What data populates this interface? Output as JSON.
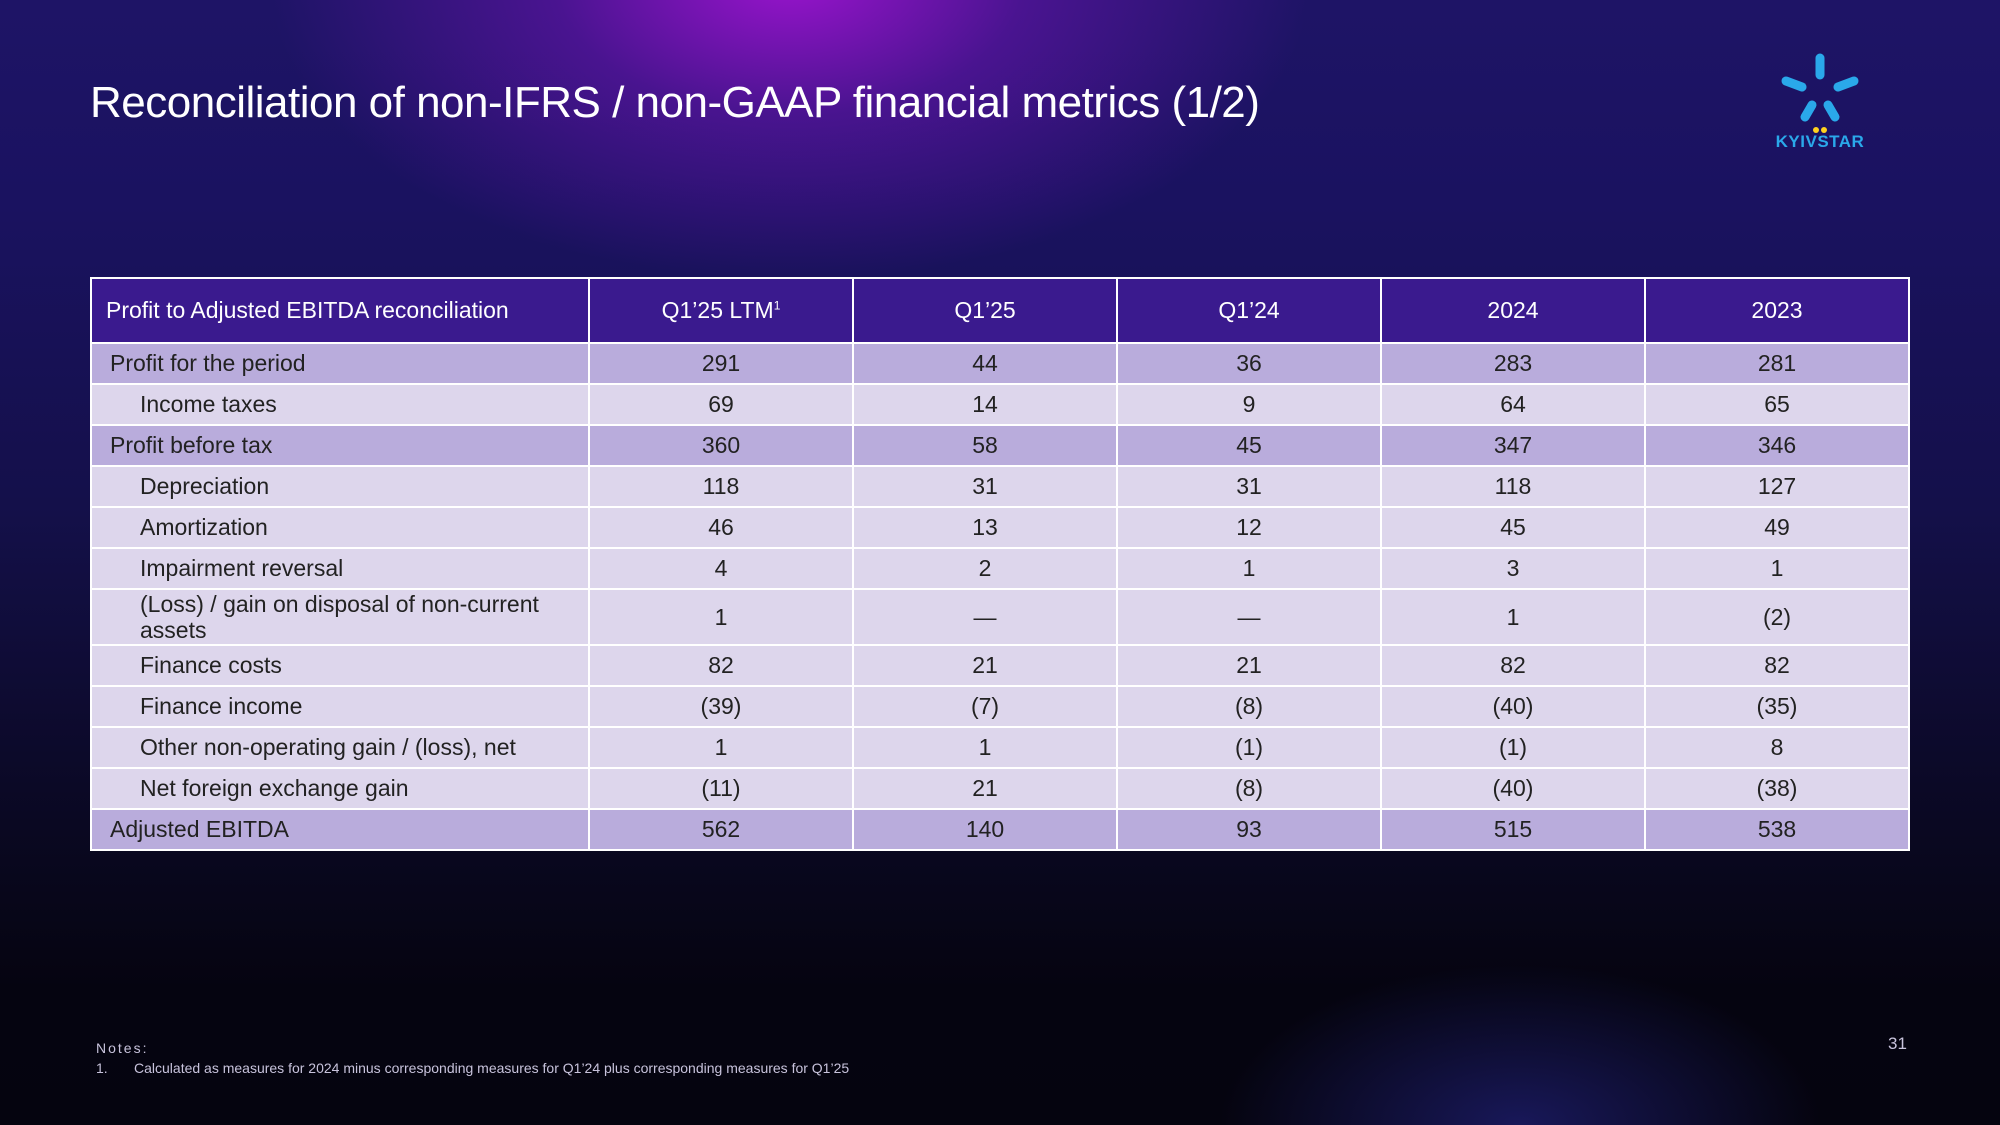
{
  "title": "Reconciliation of non-IFRS / non-GAAP financial metrics (1/2)",
  "logo": {
    "text": "KYIVSTAR",
    "brand_color": "#2aa8ea",
    "dot_color": "#ffd21e"
  },
  "table": {
    "headers": [
      "Profit to Adjusted EBITDA reconciliation",
      "Q1’25 LTM",
      "Q1’25",
      "Q1’24",
      "2024",
      "2023"
    ],
    "header_footnote": "1",
    "rows": [
      {
        "label": "Profit for the period",
        "values": [
          "291",
          "44",
          "36",
          "283",
          "281"
        ]
      },
      {
        "label": "Income taxes",
        "values": [
          "69",
          "14",
          "9",
          "64",
          "65"
        ]
      },
      {
        "label": "Profit before tax",
        "values": [
          "360",
          "58",
          "45",
          "347",
          "346"
        ]
      },
      {
        "label": "Depreciation",
        "values": [
          "118",
          "31",
          "31",
          "118",
          "127"
        ]
      },
      {
        "label": "Amortization",
        "values": [
          "46",
          "13",
          "12",
          "45",
          "49"
        ]
      },
      {
        "label": "Impairment reversal",
        "values": [
          "4",
          "2",
          "1",
          "3",
          "1"
        ]
      },
      {
        "label": "(Loss) / gain on disposal of non-current assets",
        "values": [
          "1",
          "—",
          "—",
          "1",
          "(2)"
        ]
      },
      {
        "label": "Finance costs",
        "values": [
          "82",
          "21",
          "21",
          "82",
          "82"
        ]
      },
      {
        "label": "Finance income",
        "values": [
          "(39)",
          "(7)",
          "(8)",
          "(40)",
          "(35)"
        ]
      },
      {
        "label": "Other non-operating gain / (loss), net",
        "values": [
          "1",
          "1",
          "(1)",
          "(1)",
          "8"
        ]
      },
      {
        "label": "Net foreign exchange gain",
        "values": [
          "(11)",
          "21",
          "(8)",
          "(40)",
          "(38)"
        ]
      },
      {
        "label": "Adjusted EBITDA",
        "values": [
          "562",
          "140",
          "93",
          "515",
          "538"
        ]
      }
    ]
  },
  "notes": {
    "heading": "Notes:",
    "items": [
      {
        "number": "1.",
        "text": "Calculated as measures for 2024 minus corresponding measures for Q1’24 plus corresponding measures for Q1’25"
      }
    ]
  },
  "page_number": "31",
  "colors": {
    "header_bg": "#3a1a8e",
    "row_strong": "#b9acdc",
    "row_light": "#ddd6ec"
  }
}
